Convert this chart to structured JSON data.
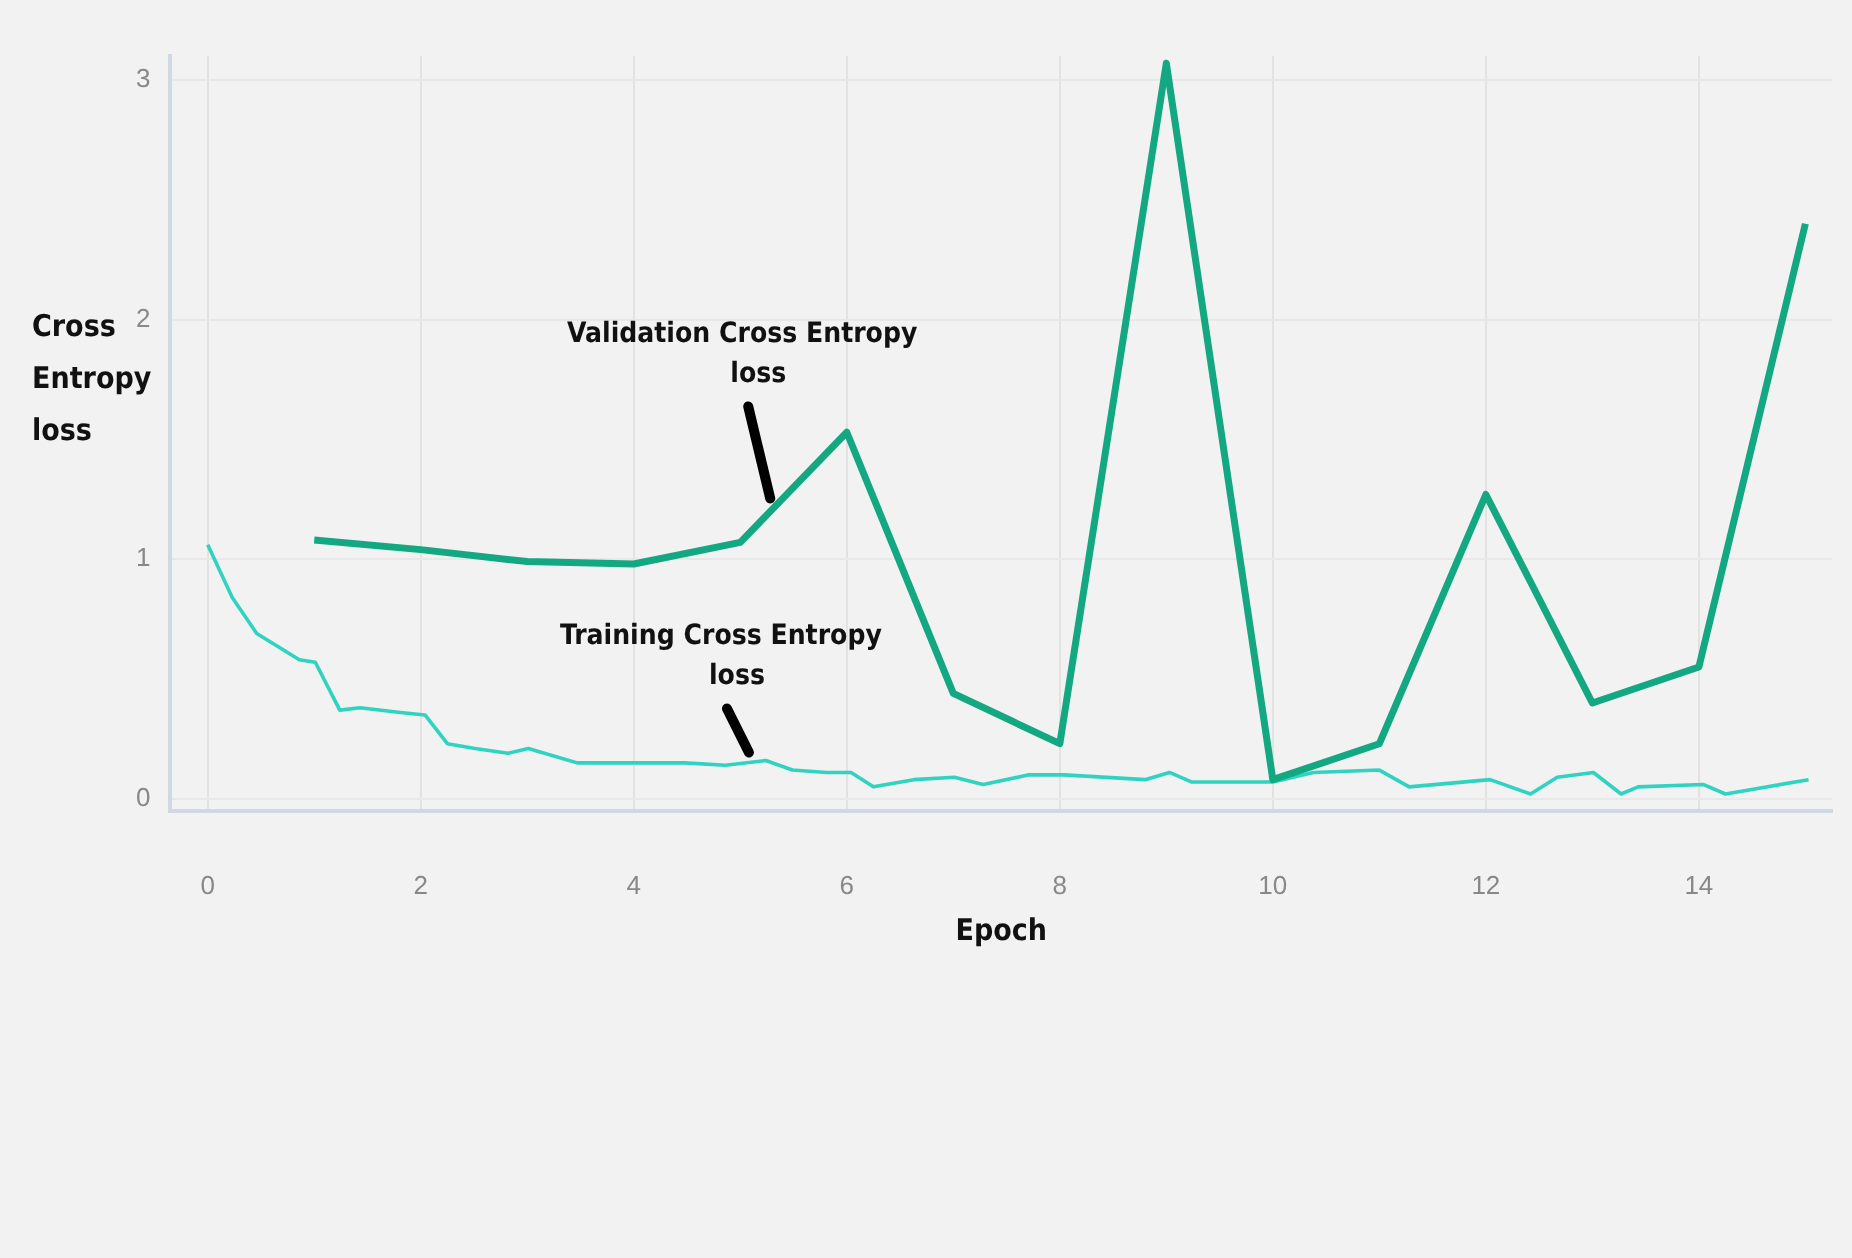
{
  "chart_data": {
    "type": "line",
    "xlabel": "Epoch",
    "ylabel": "Cross Entropy loss",
    "xlim": [
      -0.35,
      15.25
    ],
    "ylim": [
      -0.05,
      3.1
    ],
    "xticks": [
      0,
      2,
      4,
      6,
      8,
      10,
      12,
      14
    ],
    "yticks": [
      0,
      1,
      2,
      3
    ],
    "grid": true,
    "legend": false,
    "marker": "none",
    "line_style": "solid",
    "series": [
      {
        "color": "#13a882",
        "x": [
          1,
          2,
          3,
          4,
          5,
          6,
          7,
          8,
          9,
          10,
          11,
          12,
          13,
          14,
          15
        ],
        "values": [
          1.08,
          1.04,
          0.99,
          0.98,
          1.07,
          1.53,
          0.44,
          0.23,
          3.07,
          0.08,
          0.23,
          1.27,
          0.4,
          0.55,
          2.4
        ]
      },
      {
        "color": "#2fd3c0",
        "x": [
          0,
          0.23,
          0.46,
          0.86,
          1.01,
          1.24,
          1.43,
          1.81,
          2.04,
          2.25,
          2.51,
          2.82,
          3.01,
          3.47,
          3.77,
          4.15,
          4.48,
          4.86,
          5.24,
          5.49,
          5.81,
          6.04,
          6.25,
          6.63,
          7.01,
          7.28,
          7.71,
          8.04,
          8.8,
          9.03,
          9.24,
          10,
          10.38,
          11,
          11.28,
          12.04,
          12.42,
          12.67,
          13.01,
          13.27,
          13.43,
          14.04,
          14.25,
          14.51,
          15.03
        ],
        "values": [
          1.06,
          0.84,
          0.69,
          0.58,
          0.57,
          0.37,
          0.38,
          0.36,
          0.35,
          0.23,
          0.21,
          0.19,
          0.21,
          0.15,
          0.15,
          0.15,
          0.15,
          0.14,
          0.16,
          0.12,
          0.11,
          0.11,
          0.05,
          0.08,
          0.09,
          0.06,
          0.1,
          0.1,
          0.08,
          0.11,
          0.07,
          0.07,
          0.11,
          0.12,
          0.05,
          0.08,
          0.02,
          0.09,
          0.11,
          0.02,
          0.05,
          0.06,
          0.02,
          0.04,
          0.08
        ]
      }
    ],
    "annotations": [
      {
        "text": "Validation Cross Entropy loss",
        "x": 5.3,
        "y": 1.22
      },
      {
        "text": "Training Cross Entropy loss",
        "x": 5.1,
        "y": 0.16
      }
    ]
  }
}
